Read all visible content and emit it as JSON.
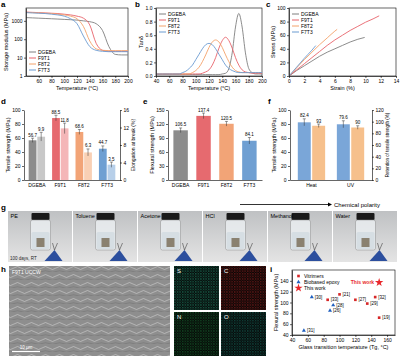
{
  "chart_data": [
    {
      "panel": "a",
      "type": "line",
      "x_label": "Temperature (°C)",
      "y_label": "Storage modulus (MPa)",
      "x": [
        40,
        50,
        60,
        70,
        80,
        90,
        100,
        110,
        120,
        130,
        140,
        150,
        160,
        170,
        180,
        190,
        200
      ],
      "series": [
        {
          "name": "DGEBA",
          "color": "#7f7f7f",
          "values": [
            1500,
            1450,
            1400,
            1350,
            1300,
            1250,
            1200,
            1150,
            1100,
            1000,
            900,
            700,
            300,
            40,
            15,
            14,
            14
          ]
        },
        {
          "name": "F9T1",
          "color": "#e8636b",
          "values": [
            3000,
            2900,
            2800,
            2700,
            2600,
            2500,
            2300,
            2100,
            1800,
            1400,
            600,
            60,
            25,
            22,
            22,
            22,
            22
          ]
        },
        {
          "name": "F8T2",
          "color": "#f4a26a",
          "values": [
            2900,
            2800,
            2700,
            2600,
            2500,
            2300,
            2100,
            1800,
            1300,
            500,
            80,
            30,
            25,
            24,
            24,
            24,
            24
          ]
        },
        {
          "name": "F7T3",
          "color": "#6b9bd1",
          "values": [
            2800,
            2700,
            2600,
            2500,
            2300,
            2100,
            1800,
            1300,
            700,
            150,
            40,
            25,
            22,
            21,
            21,
            21,
            21
          ]
        }
      ],
      "xlim": [
        40,
        200
      ],
      "xticks": [
        60,
        80,
        100,
        120,
        140,
        160,
        180,
        200
      ],
      "ylim": [
        1,
        5000
      ],
      "yticks": [
        1,
        10,
        100,
        1000
      ],
      "log": "y",
      "legend": "lower left"
    },
    {
      "panel": "b",
      "type": "line",
      "x_label": "Temperature (°C)",
      "y_label": "Tanδ",
      "x": [
        40,
        45,
        50,
        55,
        60,
        65,
        70,
        75,
        80,
        85,
        90,
        95,
        100,
        105,
        110,
        115,
        120,
        125,
        130,
        135,
        140,
        145,
        150,
        155,
        160,
        165,
        170,
        175,
        180,
        185,
        190,
        195,
        200
      ],
      "series": [
        {
          "name": "DGEBA",
          "color": "#7f7f7f",
          "values": [
            0.02,
            0.02,
            0.02,
            0.02,
            0.02,
            0.02,
            0.02,
            0.02,
            0.02,
            0.02,
            0.02,
            0.02,
            0.02,
            0.02,
            0.02,
            0.02,
            0.02,
            0.02,
            0.02,
            0.02,
            0.03,
            0.04,
            0.11,
            0.34,
            0.72,
            0.92,
            0.72,
            0.34,
            0.11,
            0.05,
            0.03,
            0.03,
            0.03
          ]
        },
        {
          "name": "F9T1",
          "color": "#e8636b",
          "values": [
            0.03,
            0.03,
            0.03,
            0.03,
            0.03,
            0.03,
            0.03,
            0.03,
            0.03,
            0.03,
            0.03,
            0.03,
            0.03,
            0.03,
            0.04,
            0.06,
            0.09,
            0.16,
            0.27,
            0.41,
            0.52,
            0.57,
            0.52,
            0.41,
            0.27,
            0.16,
            0.09,
            0.06,
            0.05,
            0.04,
            0.04,
            0.04,
            0.04
          ]
        },
        {
          "name": "F8T2",
          "color": "#f4a26a",
          "values": [
            0.03,
            0.03,
            0.03,
            0.03,
            0.03,
            0.03,
            0.03,
            0.03,
            0.03,
            0.03,
            0.03,
            0.05,
            0.08,
            0.13,
            0.21,
            0.31,
            0.42,
            0.5,
            0.53,
            0.5,
            0.42,
            0.31,
            0.21,
            0.13,
            0.08,
            0.06,
            0.05,
            0.05,
            0.05,
            0.05,
            0.05,
            0.05,
            0.05
          ]
        },
        {
          "name": "F7T3",
          "color": "#6b9bd1",
          "values": [
            0.03,
            0.03,
            0.03,
            0.03,
            0.03,
            0.03,
            0.03,
            0.03,
            0.05,
            0.07,
            0.11,
            0.16,
            0.24,
            0.32,
            0.4,
            0.46,
            0.48,
            0.46,
            0.4,
            0.32,
            0.24,
            0.16,
            0.11,
            0.08,
            0.06,
            0.05,
            0.05,
            0.05,
            0.05,
            0.05,
            0.05,
            0.05,
            0.05
          ]
        }
      ],
      "xlim": [
        40,
        200
      ],
      "xticks": [
        40,
        60,
        80,
        100,
        120,
        140,
        160,
        180,
        200
      ],
      "ylim": [
        0,
        1
      ],
      "yticks": [
        {
          "value": 0,
          "label": "0.0"
        },
        0.2,
        0.4,
        0.6,
        0.8,
        {
          "value": 1,
          "label": "1.0"
        }
      ],
      "legend": "upper left"
    },
    {
      "panel": "c",
      "type": "line",
      "x_label": "Strain (%)",
      "y_label": "Stress (MPa)",
      "series": [
        {
          "name": "DGEBA",
          "color": "#7f7f7f",
          "x": [
            0,
            1,
            2,
            3,
            4,
            5,
            6,
            7,
            8,
            9,
            9.9
          ],
          "values": [
            0,
            8,
            15,
            22,
            29,
            35,
            40,
            45,
            50,
            54,
            56.7
          ]
        },
        {
          "name": "F9T1",
          "color": "#e8636b",
          "x": [
            0,
            1,
            2,
            3,
            4,
            5,
            6,
            7,
            8,
            9,
            10,
            11,
            11.8
          ],
          "values": [
            0,
            9,
            18,
            27,
            36,
            45,
            53,
            60,
            67,
            73,
            79,
            84,
            88.5
          ]
        },
        {
          "name": "F8T2",
          "color": "#f4a26a",
          "x": [
            0,
            1,
            2,
            3,
            4,
            5,
            6,
            6.3
          ],
          "values": [
            0,
            12,
            24,
            35,
            46,
            56,
            66,
            68.6
          ]
        },
        {
          "name": "F7T3",
          "color": "#6b9bd1",
          "x": [
            0,
            1,
            2,
            3,
            3.5
          ],
          "values": [
            0,
            13,
            26,
            38,
            44.7
          ]
        }
      ],
      "xlim": [
        0,
        14
      ],
      "xticks": [
        0,
        2,
        4,
        6,
        8,
        10,
        12,
        14
      ],
      "ylim": [
        0,
        100
      ],
      "yticks": [
        0,
        20,
        40,
        60,
        80,
        100
      ],
      "legend": "upper left"
    },
    {
      "panel": "d",
      "type": "bar",
      "y_label": "Tensile strength (MPa)",
      "y2_label": "Elongation at break (%)",
      "categories": [
        "DGEBA",
        "F9T1",
        "F8T2",
        "F7T3"
      ],
      "series": [
        {
          "values": [
            56.7,
            88.5,
            68.6,
            44.7
          ],
          "errors": [
            3,
            4,
            3.5,
            4
          ],
          "colors": [
            "#8c8c8c",
            "#e66a6f",
            "#f2a477",
            "#6f9fd2"
          ]
        },
        {
          "values": [
            9.9,
            11.8,
            6.3,
            3.5
          ],
          "errors": [
            1,
            1.2,
            0.8,
            0.6
          ],
          "colors": [
            "#c8c8c8",
            "#f4b6b8",
            "#f9d0b4",
            "#b7cfe9"
          ],
          "axis": "y2"
        }
      ],
      "ylim": [
        0,
        100
      ],
      "yticks": [
        0,
        20,
        40,
        60,
        80,
        100
      ],
      "y2lim": [
        0,
        16
      ],
      "y2ticks": [
        0,
        4,
        8,
        12,
        16
      ],
      "data_labels": true
    },
    {
      "panel": "e",
      "type": "bar",
      "y_label": "Flexural strength (MPa)",
      "categories": [
        "DGEBA",
        "F9T1",
        "F8T2",
        "F7T3"
      ],
      "series": [
        {
          "values": [
            106.5,
            137.4,
            120.5,
            84.1
          ],
          "errors": [
            5,
            6,
            5,
            7
          ],
          "colors": [
            "#8c8c8c",
            "#e66a6f",
            "#f2a477",
            "#6f9fd2"
          ]
        }
      ],
      "ylim": [
        0,
        150
      ],
      "yticks": [
        0,
        30,
        60,
        90,
        120,
        150
      ],
      "data_labels": true
    },
    {
      "panel": "f",
      "type": "bar",
      "y_label": "Tensile strength (MPa)",
      "y2_label": "Retention of tensile strength (%)",
      "categories": [
        "Heat",
        "UV"
      ],
      "series": [
        {
          "values": [
            82.4,
            79.6
          ],
          "errors": [
            5,
            5
          ],
          "color": "#7aa6d8"
        },
        {
          "values": [
            93,
            90
          ],
          "errors": [
            3,
            3
          ],
          "color": "#f6c08c",
          "axis": "y2"
        }
      ],
      "ylim": [
        0,
        100
      ],
      "yticks": [
        0,
        20,
        40,
        60,
        80,
        100
      ],
      "y2lim": [
        0,
        120
      ],
      "y2ticks": [
        0,
        20,
        40,
        60,
        80,
        100,
        120
      ],
      "data_labels": true
    },
    {
      "panel": "i",
      "type": "scatter",
      "x_label": "Glass transition temperature (Tg, °C)",
      "y_label": "Flexural strength (MPa)",
      "series": [
        {
          "name": "Vitrimers",
          "color": "#d62728",
          "marker": "square",
          "x": [
            85,
            100,
            120,
            145,
            135,
            150
          ],
          "values": [
            105,
            115,
            105,
            110,
            98,
            72
          ],
          "labels": [
            "[33]",
            "[21]",
            "[27]",
            "[32]",
            "[29]",
            "[19]"
          ]
        },
        {
          "name": "Biobased epoxy",
          "color": "#1f5fbf",
          "marker": "triangle",
          "x": [
            65,
            92,
            88,
            55
          ],
          "values": [
            110,
            95,
            85,
            48
          ],
          "labels": [
            "[30]",
            "[28]",
            "[26]",
            "[31]"
          ]
        },
        {
          "name": "This work",
          "color": "#e8272b",
          "marker": "star",
          "x": [
            150
          ],
          "values": [
            137
          ],
          "labels": [
            "This work"
          ]
        }
      ],
      "xlim": [
        40,
        170
      ],
      "xticks": [
        40,
        60,
        80,
        100,
        120,
        140,
        160
      ],
      "ylim": [
        40,
        160
      ],
      "yticks": [
        40,
        60,
        80,
        100,
        120,
        140
      ],
      "legend": "upper left"
    }
  ],
  "panels": {
    "g": {
      "panel": "g",
      "annotation": "Chemical polarity",
      "duration": "100 days, RT",
      "solvents": [
        "PE",
        "Toluene",
        "Acetone",
        "HCl",
        "Methanol",
        "Water"
      ]
    },
    "h": {
      "panel": "h",
      "sample_label": "F9T1 UCCW",
      "scale_bar": "10 μm",
      "elements": [
        "S",
        "C",
        "N",
        "O"
      ]
    }
  }
}
